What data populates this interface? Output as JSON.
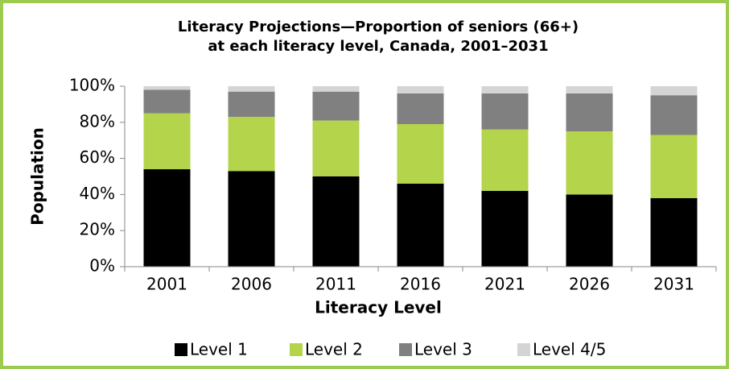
{
  "chart_data": {
    "type": "stacked_bar",
    "title": [
      "Literacy Projections—Proportion of seniors (66+)",
      "at each literacy level, Canada, 2001–2031"
    ],
    "x_label": "Literacy Level",
    "y_label": "Population",
    "categories": [
      "2001",
      "2006",
      "2011",
      "2016",
      "2021",
      "2026",
      "2031"
    ],
    "series": [
      {
        "name": "Level 1",
        "color": "#000000",
        "values": [
          54,
          53,
          50,
          46,
          42,
          40,
          38
        ]
      },
      {
        "name": "Level 2",
        "color": "#b3d44b",
        "values": [
          31,
          30,
          31,
          33,
          34,
          35,
          35
        ]
      },
      {
        "name": "Level 3",
        "color": "#808080",
        "values": [
          13,
          14,
          16,
          17,
          20,
          21,
          22
        ]
      },
      {
        "name": "Level 4/5",
        "color": "#d4d4d4",
        "values": [
          2,
          3,
          3,
          4,
          4,
          4,
          5
        ]
      }
    ],
    "ylim": [
      0,
      100
    ],
    "yticks": [
      {
        "value": 0,
        "label": "0%"
      },
      {
        "value": 20,
        "label": "20%"
      },
      {
        "value": 40,
        "label": "40%"
      },
      {
        "value": 60,
        "label": "60%"
      },
      {
        "value": 80,
        "label": "80%"
      },
      {
        "value": 100,
        "label": "100%"
      }
    ],
    "grid": false,
    "legend": "bottom"
  }
}
